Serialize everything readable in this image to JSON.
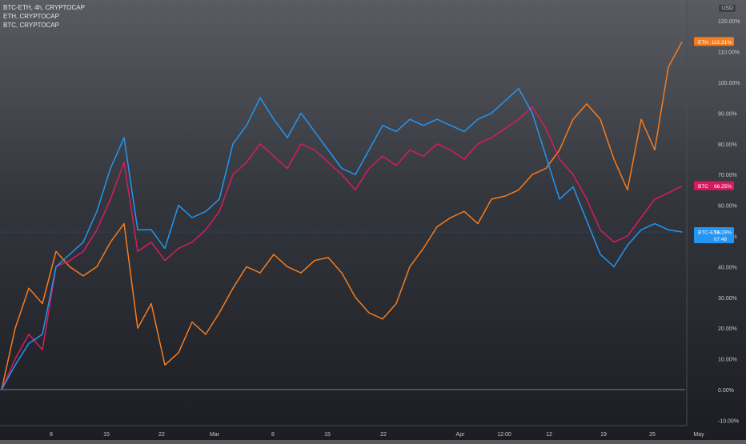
{
  "legend": {
    "main": "BTC-ETH, 4h, CRYPTOCAP",
    "eth": "ETH, CRYPTOCAP",
    "btc": "BTC, CRYPTOCAP"
  },
  "currency": "USD",
  "colors": {
    "eth": "#f57c1f",
    "btc": "#d81b60",
    "btceth": "#2196f3",
    "text": "#c8c8c8",
    "zero_line": "#9a9a9a"
  },
  "chart_data": {
    "type": "line",
    "ylabel": "",
    "ylim": [
      -11,
      125
    ],
    "x_ticks": [
      "8",
      "15",
      "22",
      "Mar",
      "8",
      "15",
      "22",
      "Apr",
      "12:00",
      "12",
      "19",
      "25",
      "May"
    ],
    "y_ticks": [
      "-10.00%",
      "0.00%",
      "10.00%",
      "20.00%",
      "30.00%",
      "40.00%",
      "50.00%",
      "60.00%",
      "70.00%",
      "80.00%",
      "90.00%",
      "100.00%",
      "110.00%",
      "120.00%"
    ],
    "x": [
      0,
      4,
      8,
      12,
      16,
      20,
      24,
      28,
      32,
      36,
      40,
      44,
      48,
      52,
      56,
      60,
      64,
      68,
      72,
      76,
      80,
      84,
      88,
      92,
      96,
      100,
      104,
      108,
      112,
      116,
      120,
      124,
      128,
      132,
      136,
      140,
      144,
      148,
      152,
      156,
      160,
      164,
      168,
      172,
      176,
      180,
      184,
      188,
      192,
      196,
      200
    ],
    "series": [
      {
        "name": "ETH",
        "last_label": "113.21%",
        "values": [
          0,
          20,
          33,
          28,
          45,
          40,
          37,
          40,
          48,
          54,
          20,
          28,
          8,
          12,
          22,
          18,
          25,
          33,
          40,
          38,
          44,
          40,
          38,
          42,
          43,
          38,
          30,
          25,
          23,
          28,
          40,
          46,
          53,
          56,
          58,
          54,
          62,
          63,
          65,
          70,
          72,
          78,
          88,
          93,
          88,
          75,
          65,
          88,
          78,
          105,
          113.2
        ]
      },
      {
        "name": "BTC",
        "last_label": "66.25%",
        "values": [
          0,
          10,
          18,
          13,
          40,
          42,
          45,
          52,
          62,
          74,
          45,
          48,
          42,
          46,
          48,
          52,
          58,
          70,
          74,
          80,
          76,
          72,
          80,
          78,
          74,
          70,
          65,
          72,
          76,
          73,
          78,
          76,
          80,
          78,
          75,
          80,
          82,
          85,
          88,
          92,
          85,
          75,
          70,
          62,
          52,
          48,
          50,
          56,
          62,
          64,
          66.25
        ]
      },
      {
        "name": "BTC-ETH",
        "last_label": "51.29%",
        "values": [
          0,
          8,
          15,
          18,
          40,
          44,
          48,
          58,
          72,
          82,
          52,
          52,
          46,
          60,
          56,
          58,
          62,
          80,
          86,
          95,
          88,
          82,
          90,
          84,
          78,
          72,
          70,
          78,
          86,
          84,
          88,
          86,
          88,
          86,
          84,
          88,
          90,
          94,
          98,
          90,
          76,
          62,
          66,
          55,
          44,
          40,
          47,
          52,
          54,
          52,
          51.29
        ]
      }
    ],
    "badges": [
      {
        "series": "ETH",
        "name": "ETH",
        "value": "113.21%"
      },
      {
        "series": "BTC",
        "name": "BTC",
        "value": "66.25%"
      },
      {
        "series": "BTC-ETH",
        "name": "BTC-ETH",
        "value": "51.29%",
        "countdown": "07:48"
      }
    ]
  }
}
